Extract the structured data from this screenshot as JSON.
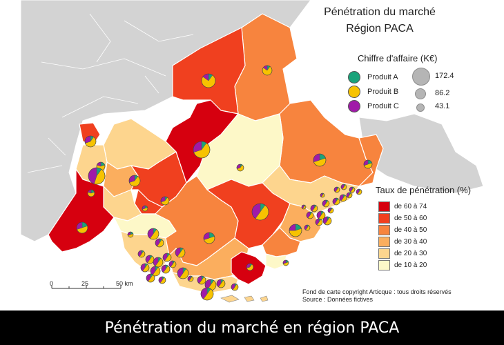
{
  "title_line1": "Pénétration du marché",
  "title_line2": "Région PACA",
  "ca_legend": {
    "title": "Chiffre d'affaire (K€)",
    "products": [
      {
        "label": "Produit A",
        "color": "#1aa37a"
      },
      {
        "label": "Produit B",
        "color": "#f7c300"
      },
      {
        "label": "Produit C",
        "color": "#a01aa8"
      }
    ],
    "sizes": [
      "172.4",
      "86.2",
      "43.1"
    ]
  },
  "rate_legend": {
    "title": "Taux de pénétration (%)",
    "classes": [
      {
        "label": "de 60 à 74",
        "color": "#d6000f"
      },
      {
        "label": "de 50 à 60",
        "color": "#f0401f"
      },
      {
        "label": "de 40 à 50",
        "color": "#f7843e"
      },
      {
        "label": "de 30 à 40",
        "color": "#fbae5e"
      },
      {
        "label": "de 20 à 30",
        "color": "#fdd58e"
      },
      {
        "label": "de 10 à 20",
        "color": "#fdf8c8"
      }
    ]
  },
  "scale": {
    "ticks": [
      "0",
      "25",
      "50 km"
    ]
  },
  "source_line1": "Fond de carte copyright Articque : tous droits réservés",
  "source_line2": "Source : Données fictives",
  "caption": "Pénétration du marché en région PACA",
  "colors": {
    "background_land": "#d3d3d3",
    "border_lines": "#ffffff"
  }
}
